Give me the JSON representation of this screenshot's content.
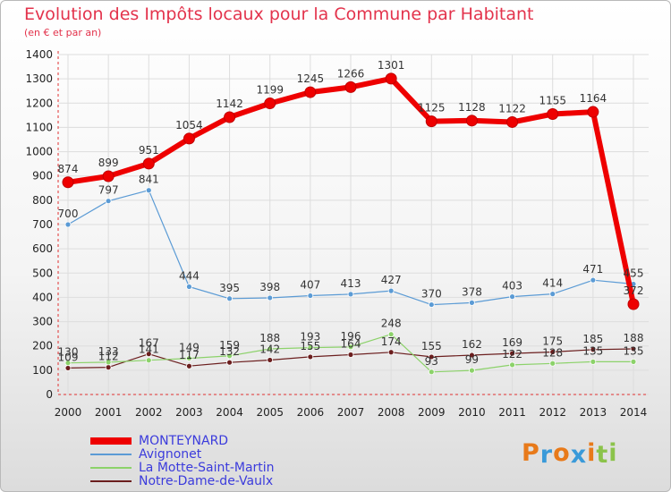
{
  "chart_data": {
    "type": "line",
    "title": "Evolution des Impôts locaux pour la Commune par Habitant",
    "subtitle": "(en € et par an)",
    "x": [
      "2000",
      "2001",
      "2002",
      "2003",
      "2004",
      "2005",
      "2006",
      "2007",
      "2008",
      "2009",
      "2010",
      "2011",
      "2012",
      "2013",
      "2014"
    ],
    "ylim": [
      0,
      1400
    ],
    "yticks": [
      0,
      100,
      200,
      300,
      400,
      500,
      600,
      700,
      800,
      900,
      1000,
      1100,
      1200,
      1300,
      1400
    ],
    "grid": true,
    "legend_position": "bottom-left",
    "series": [
      {
        "name": "MONTEYNARD",
        "color": "#ee0000",
        "values": [
          874,
          899,
          951,
          1054,
          1142,
          1199,
          1245,
          1266,
          1301,
          1125,
          1128,
          1122,
          1155,
          1164,
          372
        ]
      },
      {
        "name": "Avignonet",
        "color": "#5b9bd5",
        "values": [
          700,
          797,
          841,
          444,
          395,
          398,
          407,
          413,
          427,
          370,
          378,
          403,
          414,
          471,
          455
        ]
      },
      {
        "name": "La Motte-Saint-Martin",
        "color": "#8cd26a",
        "values": [
          130,
          133,
          141,
          149,
          159,
          188,
          193,
          196,
          248,
          93,
          99,
          122,
          128,
          135,
          135
        ]
      },
      {
        "name": "Notre-Dame-de-Vaulx",
        "color": "#6b1e1e",
        "values": [
          109,
          112,
          167,
          117,
          132,
          142,
          155,
          164,
          174,
          155,
          162,
          169,
          175,
          185,
          188
        ]
      }
    ]
  },
  "logo": {
    "letters": [
      "P",
      "r",
      "o",
      "x",
      "i",
      "t",
      "i"
    ],
    "colors": [
      "#e87a1a",
      "#3a9ad9",
      "#e87a1a",
      "#3a9ad9",
      "#e87a1a",
      "#8bc34a",
      "#8bc34a"
    ]
  }
}
